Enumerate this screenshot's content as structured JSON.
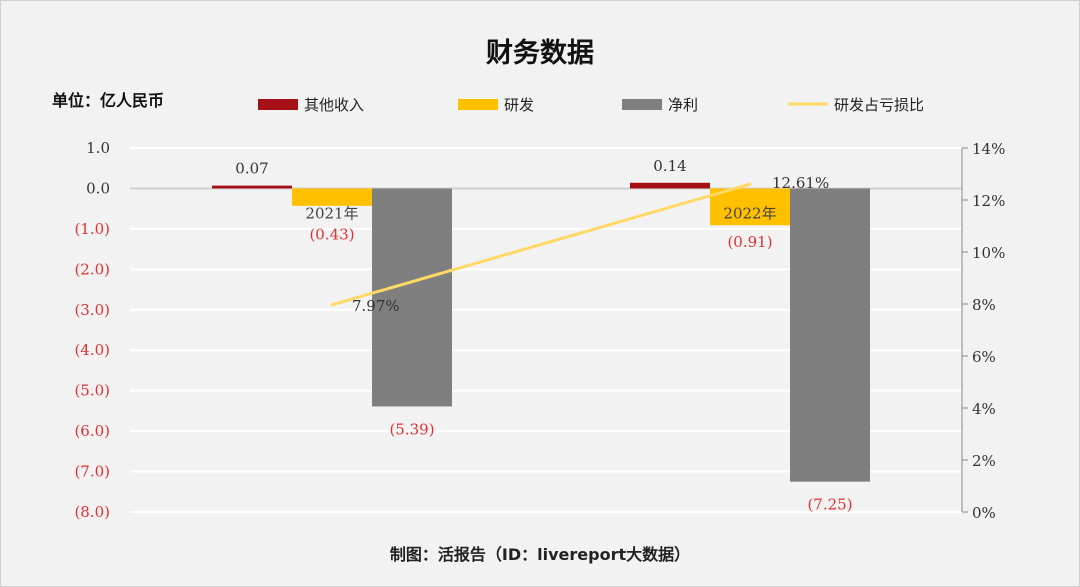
{
  "chart_data": {
    "type": "bar+line",
    "title": "财务数据",
    "unit_label": "单位：亿人民币",
    "footer": "制图：活报告（ID：livereport大数据）",
    "categories": [
      "2021年",
      "2022年"
    ],
    "series": [
      {
        "name": "其他收入",
        "type": "bar",
        "color": "#a50f15",
        "values": [
          0.07,
          0.14
        ],
        "labels": [
          "0.07",
          "0.14"
        ]
      },
      {
        "name": "研发",
        "type": "bar",
        "color": "#ffc000",
        "values": [
          -0.43,
          -0.91
        ],
        "labels": [
          "(0.43)",
          "(0.91)"
        ]
      },
      {
        "name": "净利",
        "type": "bar",
        "color": "#7f7f7f",
        "values": [
          -5.39,
          -7.25
        ],
        "labels": [
          "(5.39)",
          "(7.25)"
        ]
      },
      {
        "name": "研发占亏损比",
        "type": "line",
        "axis": "right",
        "color": "#ffd966",
        "values": [
          7.97,
          12.61
        ],
        "labels": [
          "7.97%",
          "12.61%"
        ]
      }
    ],
    "left_axis": {
      "range": [
        -8,
        1
      ],
      "ticks": [
        "1.0",
        "0.0",
        "(1.0)",
        "(2.0)",
        "(3.0)",
        "(4.0)",
        "(5.0)",
        "(6.0)",
        "(7.0)",
        "(8.0)"
      ]
    },
    "right_axis": {
      "range": [
        0,
        14
      ],
      "ticks": [
        "14%",
        "12%",
        "10%",
        "8%",
        "6%",
        "4%",
        "2%",
        "0%"
      ]
    },
    "grid": true,
    "legend_position": "top",
    "negative_color": "#e03030"
  }
}
